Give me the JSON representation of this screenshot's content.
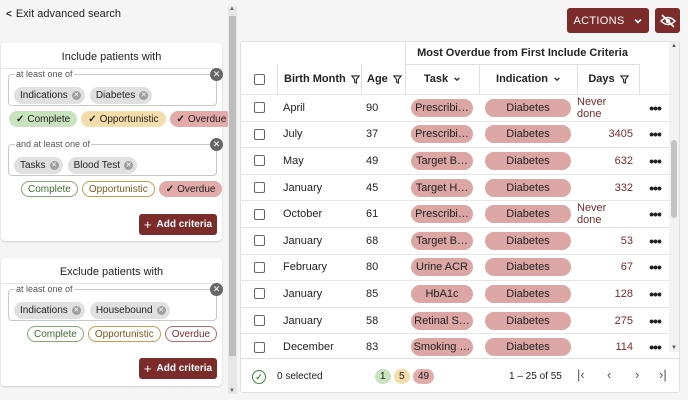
{
  "exit_label": "Exit advanced search",
  "actions": {
    "label": "ACTIONS",
    "chevron_icon": "chevron-down-icon",
    "eye_icon": "eye-off-icon"
  },
  "include": {
    "title": "Include patients with",
    "group1": {
      "label": "at least one of",
      "chips": [
        "Indications",
        "Diabetes"
      ]
    },
    "status1": [
      "Complete",
      "Opportunistic",
      "Overdue"
    ],
    "group2": {
      "label": "and at least one of",
      "chips": [
        "Tasks",
        "Blood Test"
      ]
    },
    "status2": [
      "Complete",
      "Opportunistic",
      "Overdue"
    ],
    "add_label": "Add criteria"
  },
  "exclude": {
    "title": "Exclude patients with",
    "group1": {
      "label": "at least one of",
      "chips": [
        "Indications",
        "Housebound"
      ]
    },
    "status1": [
      "Complete",
      "Opportunistic",
      "Overdue"
    ],
    "add_label": "Add criteria"
  },
  "table": {
    "group_header": "Most Overdue from First Include Criteria",
    "columns": [
      "Birth Month",
      "Age",
      "Task",
      "Indication",
      "Days"
    ],
    "rows": [
      {
        "month": "April",
        "age": "90",
        "task": "Prescribi…",
        "indication": "Diabetes",
        "days": "Never done"
      },
      {
        "month": "July",
        "age": "37",
        "task": "Prescribi…",
        "indication": "Diabetes",
        "days": "3405"
      },
      {
        "month": "May",
        "age": "49",
        "task": "Target B…",
        "indication": "Diabetes",
        "days": "632"
      },
      {
        "month": "January",
        "age": "45",
        "task": "Target H…",
        "indication": "Diabetes",
        "days": "332"
      },
      {
        "month": "October",
        "age": "61",
        "task": "Prescribi…",
        "indication": "Diabetes",
        "days": "Never done"
      },
      {
        "month": "January",
        "age": "68",
        "task": "Target B…",
        "indication": "Diabetes",
        "days": "53"
      },
      {
        "month": "February",
        "age": "80",
        "task": "Urine ACR",
        "indication": "Diabetes",
        "days": "67"
      },
      {
        "month": "January",
        "age": "85",
        "task": "HbA1c",
        "indication": "Diabetes",
        "days": "128"
      },
      {
        "month": "January",
        "age": "58",
        "task": "Retinal S…",
        "indication": "Diabetes",
        "days": "275"
      },
      {
        "month": "December",
        "age": "83",
        "task": "Smoking …",
        "indication": "Diabetes",
        "days": "114"
      }
    ]
  },
  "footer": {
    "selected": "0 selected",
    "counts": [
      "1",
      "5",
      "49"
    ],
    "range": "1 – 25 of 55"
  },
  "colors": {
    "accent": "#7b2b2a",
    "pill": "#dba6a3",
    "complete": "#c9e3bf",
    "opportunistic": "#f5dcab",
    "overdue": "#e2aaa8"
  }
}
